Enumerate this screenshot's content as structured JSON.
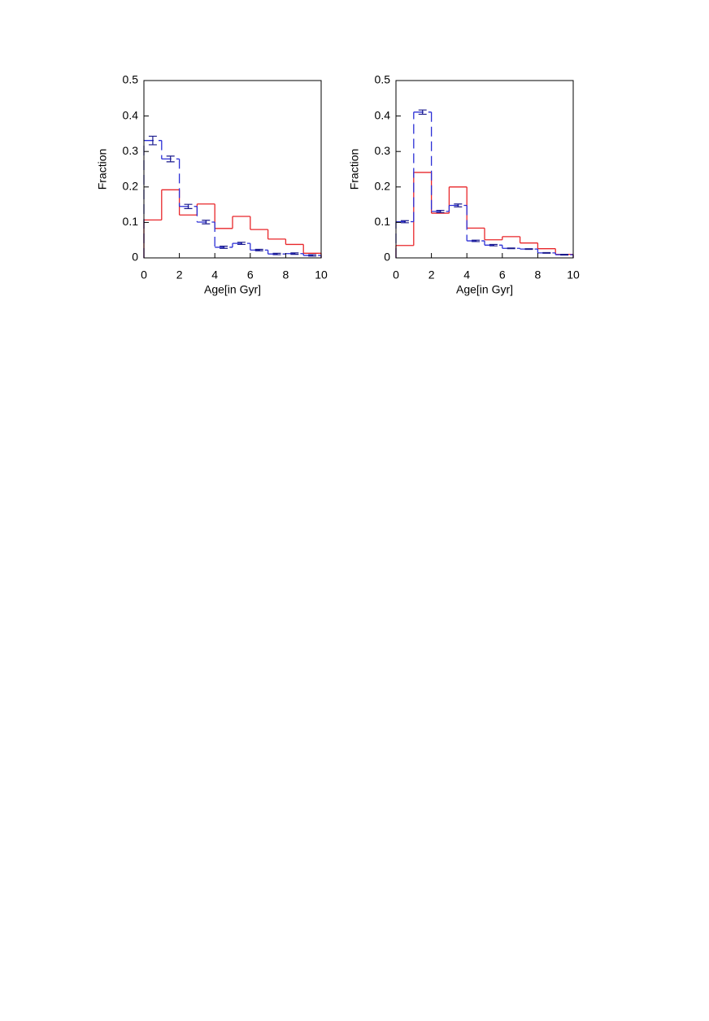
{
  "chart_data": [
    {
      "type": "histogram",
      "xlabel": "Age[in Gyr]",
      "ylabel": "Fraction",
      "bins": [
        0,
        1,
        2,
        3,
        4,
        5,
        6,
        7,
        8,
        9,
        10
      ],
      "xlim": [
        0,
        10
      ],
      "xticks": [
        0,
        2,
        4,
        6,
        8,
        10
      ],
      "ylim": [
        0,
        0.5
      ],
      "yticks": [
        0,
        0.1,
        0.2,
        0.3,
        0.4,
        0.5
      ],
      "series": [
        {
          "color": "#e8262a",
          "linestyle": "solid",
          "values": [
            0.107,
            0.192,
            0.121,
            0.152,
            0.083,
            0.117,
            0.08,
            0.053,
            0.038,
            0.013
          ]
        },
        {
          "color": "#2b2fd6",
          "linestyle": "dashed",
          "values": [
            0.331,
            0.279,
            0.145,
            0.101,
            0.03,
            0.041,
            0.022,
            0.011,
            0.012,
            0.007
          ],
          "errors": [
            0.012,
            0.008,
            0.006,
            0.005,
            0.003,
            0.003,
            0.002,
            0.002,
            0.002,
            0.002
          ]
        }
      ]
    },
    {
      "type": "histogram",
      "xlabel": "Age[in Gyr]",
      "ylabel": "Fraction",
      "bins": [
        0,
        1,
        2,
        3,
        4,
        5,
        6,
        7,
        8,
        9,
        10
      ],
      "xlim": [
        0,
        10
      ],
      "xticks": [
        0,
        2,
        4,
        6,
        8,
        10
      ],
      "ylim": [
        0,
        0.5
      ],
      "yticks": [
        0,
        0.1,
        0.2,
        0.3,
        0.4,
        0.5
      ],
      "series": [
        {
          "color": "#e8262a",
          "linestyle": "solid",
          "values": [
            0.035,
            0.241,
            0.126,
            0.2,
            0.084,
            0.051,
            0.06,
            0.042,
            0.026,
            0.01
          ]
        },
        {
          "color": "#2b2fd6",
          "linestyle": "dashed",
          "values": [
            0.102,
            0.411,
            0.131,
            0.148,
            0.048,
            0.036,
            0.027,
            0.025,
            0.014,
            0.009
          ],
          "errors": [
            0.003,
            0.006,
            0.003,
            0.004,
            0.002,
            0.002,
            0.001,
            0.001,
            0.001,
            0.001
          ]
        }
      ]
    }
  ]
}
